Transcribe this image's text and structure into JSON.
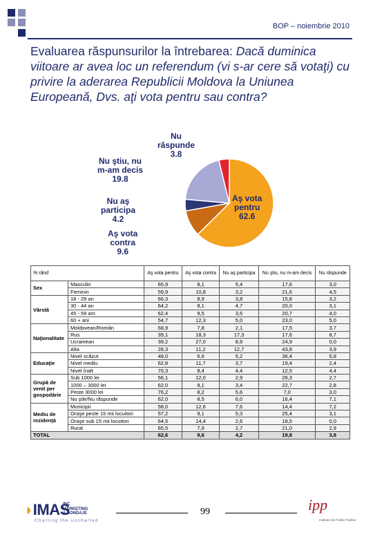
{
  "header": {
    "text": "BOP – noiembrie 2010"
  },
  "title": {
    "plain": "Evaluarea răspunsurilor la întrebarea:",
    "italic": "Dacă duminica viitoare ar avea loc un referendum (vi s-ar cere să votaţi) cu privire la aderarea Republicii Moldova la Uniunea Europeană, Dvs. aţi vota pentru sau contra?"
  },
  "chart_data": {
    "type": "pie",
    "slices": [
      {
        "label_line1": "Aş vota",
        "label_line2": "pentru",
        "value_text": "62.6",
        "value": 62.6,
        "color": "#f5a21e"
      },
      {
        "label_line1": "Aş vota",
        "label_line2": "contra",
        "value_text": "9.6",
        "value": 9.6,
        "color": "#c96a14"
      },
      {
        "label_line1": "Nu aş",
        "label_line2": "participa",
        "value_text": "4.2",
        "value": 4.2,
        "color": "#2b3674"
      },
      {
        "label_line1": "Nu ştiu, nu",
        "label_line2": "m-am decis",
        "value_text": "19.8",
        "value": 19.8,
        "color": "#a9a9d6"
      },
      {
        "label_line1": "Nu",
        "label_line2": "răspunde",
        "value_text": "3.8",
        "value": 3.8,
        "color": "#e2232b"
      }
    ]
  },
  "table": {
    "corner": "% rând",
    "columns": [
      "Aş vota pentru",
      "Aş vota contra",
      "Nu aş participa",
      "Nu ştiu, nu m-am decis",
      "Nu răspunde"
    ],
    "groups": [
      {
        "name": "Sex",
        "rows": [
          {
            "label": "Masculin",
            "values": [
              "65,9",
              "8,1",
              "5,4",
              "17,6",
              "3,0"
            ]
          },
          {
            "label": "Feminin",
            "values": [
              "59,9",
              "10,8",
              "3,2",
              "21,6",
              "4,5"
            ]
          }
        ]
      },
      {
        "name": "Vârstă",
        "rows": [
          {
            "label": "18 - 29 an",
            "values": [
              "66,3",
              "8,9",
              "3,8",
              "15,8",
              "3,2"
            ]
          },
          {
            "label": "30 - 44 an",
            "values": [
              "64,2",
              "8,1",
              "4,7",
              "20,0",
              "3,1"
            ]
          },
          {
            "label": "45 - 59 am",
            "values": [
              "62,4",
              "9,5",
              "3,5",
              "20,7",
              "4,0"
            ]
          },
          {
            "label": "60 + ani",
            "values": [
              "54,7",
              "12,3",
              "5,0",
              "23,0",
              "5,0"
            ]
          }
        ]
      },
      {
        "name": "Naţionalitate",
        "rows": [
          {
            "label": "Moldovean/Român",
            "values": [
              "68,9",
              "7,8",
              "2,1",
              "17,5",
              "3,7"
            ]
          },
          {
            "label": "Rus",
            "values": [
              "39,1",
              "18,3",
              "17,3",
              "17,6",
              "8,7"
            ]
          },
          {
            "label": "Ucrainean",
            "values": [
              "39,2",
              "27,0",
              "8,9",
              "24,9",
              "0,0"
            ]
          },
          {
            "label": "Alta",
            "values": [
              "28,3",
              "11,2",
              "12,7",
              "43,8",
              "3,9"
            ]
          }
        ]
      },
      {
        "name": "Educaţie",
        "rows": [
          {
            "label": "Nivel scăzut",
            "values": [
              "48,0",
              "6,6",
              "5,2",
              "36,4",
              "5,8"
            ]
          },
          {
            "label": "Nivel mediu",
            "values": [
              "62,8",
              "11,7",
              "3,7",
              "19,4",
              "2,4"
            ]
          },
          {
            "label": "Nivel înalt",
            "values": [
              "70,3",
              "8,4",
              "4,4",
              "12,5",
              "4,4"
            ]
          }
        ]
      },
      {
        "name": "Grupă de venit per gospodărie",
        "rows": [
          {
            "label": "Sub 1000 lei",
            "values": [
              "56,1",
              "12,0",
              "2,9",
              "26,3",
              "2,7"
            ]
          },
          {
            "label": "1000 – 3000 lei",
            "values": [
              "62,0",
              "9,1",
              "3,4",
              "22,7",
              "2,8"
            ]
          },
          {
            "label": "Peste 3000 lei",
            "values": [
              "76,2",
              "8,2",
              "5,6",
              "7,0",
              "3,0"
            ]
          },
          {
            "label": "Nu ştie/Nu răspunde",
            "values": [
              "62,0",
              "8,5",
              "6,0",
              "16,4",
              "7,1"
            ]
          }
        ]
      },
      {
        "name": "Mediu de rezidenţă",
        "rows": [
          {
            "label": "Municipii",
            "values": [
              "58,0",
              "12,6",
              "7,6",
              "14,4",
              "7,2"
            ]
          },
          {
            "label": "Oraşe peste 15 mii locuitori",
            "values": [
              "57,2",
              "9,1",
              "5,3",
              "25,4",
              "3,1"
            ]
          },
          {
            "label": "Oraşe sub 15 mii locuitori",
            "values": [
              "64,5",
              "14,4",
              "2,6",
              "18,5",
              "0,0"
            ]
          },
          {
            "label": "Rural",
            "values": [
              "65,5",
              "7,9",
              "2,7",
              "21,0",
              "2,9"
            ]
          }
        ]
      }
    ],
    "total": {
      "label": "TOTAL",
      "values": [
        "62,6",
        "9,6",
        "4,2",
        "19,8",
        "3,8"
      ]
    }
  },
  "footer": {
    "page_number": "99",
    "logo_imas": "IMAS",
    "logo_imas_sub1": "INC",
    "logo_imas_sub2": "MARKETING",
    "logo_imas_sub3": "& SONDAJE",
    "logo_imas_tagline": "Charting the uncharted",
    "logo_ipp": "ipp",
    "logo_ipp_sub": "Institutul de Politici Publice"
  }
}
